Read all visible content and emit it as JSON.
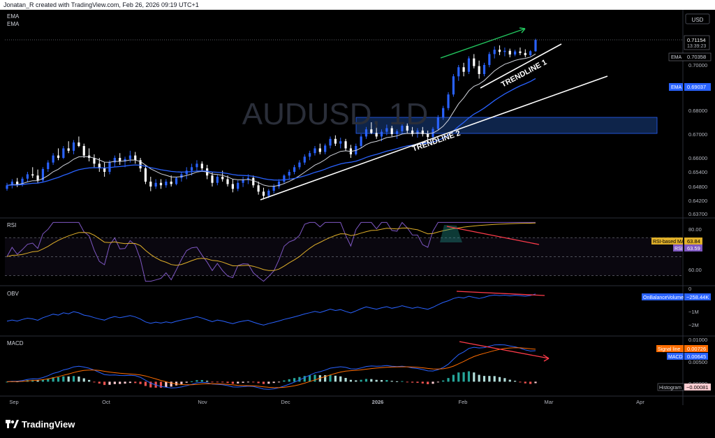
{
  "header": {
    "credit": "Jonatan_R created with TradingView.com, Feb 26, 2026 09:19 UTC+1"
  },
  "brand": {
    "name": "TradingView"
  },
  "panes": {
    "price": {
      "currency": "USD",
      "watermark": "AUDUSD, 1D",
      "indicator_labels": [
        "EMA",
        "EMA"
      ],
      "ticks": [
        "0.70000",
        "0.68000",
        "0.67000",
        "0.66000",
        "0.65400",
        "0.64800",
        "0.64200",
        "0.63700"
      ],
      "last_price": "0.71154",
      "countdown": "13:39:23",
      "ema_fast_label": "EMA",
      "ema_fast_value": "0.70358",
      "ema_slow_label": "EMA",
      "ema_slow_value": "0.69037",
      "annotations": [
        "TRENDLINE 1",
        "TRENDLINE 2"
      ]
    },
    "rsi": {
      "label": "RSI",
      "ticks": [
        "80.00",
        "60.00"
      ],
      "ma_label": "RSI-based MA",
      "ma_value": "63.84",
      "rsi_label": "RSI",
      "rsi_value": "63.59"
    },
    "obv": {
      "label": "OBV",
      "ticks": [
        "0",
        "−1M",
        "−2M"
      ],
      "tag_label": "OnBalanceVolume",
      "tag_value": "−258.44K"
    },
    "macd": {
      "label": "MACD",
      "ticks": [
        "0.01000",
        "0.00500",
        "0.00000"
      ],
      "signal_label": "Signal line",
      "signal_value": "0.00726",
      "macd_label": "MACD",
      "macd_value": "0.00645",
      "hist_label": "Histogram",
      "hist_value": "−0.00081"
    }
  },
  "time_axis": [
    "Sep",
    "Oct",
    "Nov",
    "Dec",
    "2026",
    "Feb",
    "Mar",
    "Apr"
  ],
  "colors": {
    "up": "#2962ff",
    "down": "#ffffff",
    "ema_fast": "#d1d4dc",
    "ema_slow": "#2962ff",
    "rsi": "#7e57c2",
    "rsi_ma": "#e0b02a",
    "obv": "#2962ff",
    "macd": "#2962ff",
    "signal": "#ff6d00",
    "divergence": "#ff3b4a",
    "up_arrow": "#22c55e",
    "zone": "#1e4fa3",
    "hist_pos": "#26a69a",
    "hist_neg": "#ef5350"
  },
  "chart_data": {
    "type": "candlestick",
    "symbol": "AUDUSD",
    "timeframe": "1D",
    "x_range": [
      "2025-09-01",
      "2026-04-10"
    ],
    "ylim": [
      0.635,
      0.714
    ],
    "last_close": 0.71154,
    "ohlc_approx": [
      [
        0.647,
        0.6495,
        0.6462,
        0.6485
      ],
      [
        0.6485,
        0.651,
        0.6472,
        0.65
      ],
      [
        0.65,
        0.6515,
        0.6478,
        0.6487
      ],
      [
        0.6487,
        0.652,
        0.648,
        0.6512
      ],
      [
        0.6512,
        0.654,
        0.65,
        0.653
      ],
      [
        0.653,
        0.656,
        0.6515,
        0.6525
      ],
      [
        0.6525,
        0.655,
        0.6495,
        0.6505
      ],
      [
        0.6505,
        0.656,
        0.65,
        0.6552
      ],
      [
        0.6552,
        0.659,
        0.654,
        0.658
      ],
      [
        0.658,
        0.662,
        0.657,
        0.661
      ],
      [
        0.661,
        0.664,
        0.659,
        0.66
      ],
      [
        0.66,
        0.665,
        0.6595,
        0.664
      ],
      [
        0.664,
        0.667,
        0.662,
        0.663
      ],
      [
        0.663,
        0.6675,
        0.6615,
        0.6665
      ],
      [
        0.6665,
        0.669,
        0.6645,
        0.665
      ],
      [
        0.665,
        0.666,
        0.66,
        0.661
      ],
      [
        0.661,
        0.664,
        0.6585,
        0.66
      ],
      [
        0.66,
        0.6615,
        0.656,
        0.6575
      ],
      [
        0.6575,
        0.66,
        0.654,
        0.6555
      ],
      [
        0.6555,
        0.658,
        0.652,
        0.654
      ],
      [
        0.654,
        0.659,
        0.653,
        0.658
      ],
      [
        0.658,
        0.661,
        0.656,
        0.66
      ],
      [
        0.66,
        0.662,
        0.657,
        0.6585
      ],
      [
        0.6585,
        0.6605,
        0.656,
        0.6595
      ],
      [
        0.6595,
        0.663,
        0.658,
        0.661
      ],
      [
        0.661,
        0.6625,
        0.6575,
        0.659
      ],
      [
        0.659,
        0.66,
        0.654,
        0.6555
      ],
      [
        0.6555,
        0.657,
        0.649,
        0.65
      ],
      [
        0.65,
        0.652,
        0.646,
        0.648
      ],
      [
        0.648,
        0.651,
        0.647,
        0.6495
      ],
      [
        0.6495,
        0.651,
        0.647,
        0.6485
      ],
      [
        0.6485,
        0.651,
        0.6475,
        0.65
      ],
      [
        0.65,
        0.6525,
        0.648,
        0.649
      ],
      [
        0.649,
        0.652,
        0.6485,
        0.6515
      ],
      [
        0.6515,
        0.654,
        0.65,
        0.653
      ],
      [
        0.653,
        0.656,
        0.651,
        0.6545
      ],
      [
        0.6545,
        0.6575,
        0.6525,
        0.656
      ],
      [
        0.656,
        0.659,
        0.6545,
        0.6575
      ],
      [
        0.6575,
        0.6585,
        0.654,
        0.6555
      ],
      [
        0.6555,
        0.657,
        0.651,
        0.6525
      ],
      [
        0.6525,
        0.654,
        0.648,
        0.6495
      ],
      [
        0.6495,
        0.653,
        0.6485,
        0.652
      ],
      [
        0.652,
        0.6545,
        0.65,
        0.651
      ],
      [
        0.651,
        0.6525,
        0.648,
        0.649
      ],
      [
        0.649,
        0.651,
        0.6455,
        0.647
      ],
      [
        0.647,
        0.6505,
        0.646,
        0.6495
      ],
      [
        0.6495,
        0.652,
        0.6478,
        0.6508
      ],
      [
        0.6508,
        0.653,
        0.649,
        0.6515
      ],
      [
        0.6515,
        0.6525,
        0.6475,
        0.6485
      ],
      [
        0.6485,
        0.65,
        0.6445,
        0.6458
      ],
      [
        0.6458,
        0.6475,
        0.6425,
        0.644
      ],
      [
        0.644,
        0.647,
        0.643,
        0.6462
      ],
      [
        0.6462,
        0.649,
        0.645,
        0.648
      ],
      [
        0.648,
        0.651,
        0.647,
        0.65
      ],
      [
        0.65,
        0.653,
        0.649,
        0.6525
      ],
      [
        0.6525,
        0.655,
        0.651,
        0.654
      ],
      [
        0.654,
        0.657,
        0.653,
        0.656
      ],
      [
        0.656,
        0.659,
        0.655,
        0.658
      ],
      [
        0.658,
        0.6615,
        0.657,
        0.6605
      ],
      [
        0.6605,
        0.663,
        0.659,
        0.662
      ],
      [
        0.662,
        0.665,
        0.661,
        0.664
      ],
      [
        0.664,
        0.666,
        0.6615,
        0.6625
      ],
      [
        0.6625,
        0.666,
        0.6615,
        0.6652
      ],
      [
        0.6652,
        0.669,
        0.664,
        0.668
      ],
      [
        0.668,
        0.6695,
        0.665,
        0.666
      ],
      [
        0.666,
        0.6685,
        0.664,
        0.667
      ],
      [
        0.667,
        0.668,
        0.663,
        0.664
      ],
      [
        0.664,
        0.6655,
        0.66,
        0.6615
      ],
      [
        0.6615,
        0.666,
        0.661,
        0.665
      ],
      [
        0.665,
        0.67,
        0.664,
        0.669
      ],
      [
        0.669,
        0.673,
        0.668,
        0.672
      ],
      [
        0.672,
        0.675,
        0.67,
        0.6705
      ],
      [
        0.6705,
        0.673,
        0.668,
        0.669
      ],
      [
        0.669,
        0.672,
        0.667,
        0.671
      ],
      [
        0.671,
        0.674,
        0.6695,
        0.6725
      ],
      [
        0.6725,
        0.6735,
        0.669,
        0.67
      ],
      [
        0.67,
        0.672,
        0.668,
        0.6712
      ],
      [
        0.6712,
        0.6745,
        0.67,
        0.6735
      ],
      [
        0.6735,
        0.6745,
        0.6705,
        0.6715
      ],
      [
        0.6715,
        0.673,
        0.669,
        0.67
      ],
      [
        0.67,
        0.6725,
        0.6685,
        0.6715
      ],
      [
        0.6715,
        0.673,
        0.669,
        0.67
      ],
      [
        0.67,
        0.6715,
        0.6675,
        0.6688
      ],
      [
        0.6688,
        0.673,
        0.668,
        0.6722
      ],
      [
        0.6722,
        0.678,
        0.6715,
        0.677
      ],
      [
        0.677,
        0.682,
        0.676,
        0.681
      ],
      [
        0.681,
        0.688,
        0.68,
        0.687
      ],
      [
        0.687,
        0.696,
        0.686,
        0.695
      ],
      [
        0.695,
        0.7,
        0.693,
        0.699
      ],
      [
        0.699,
        0.701,
        0.695,
        0.697
      ],
      [
        0.697,
        0.704,
        0.696,
        0.703
      ],
      [
        0.703,
        0.705,
        0.6985,
        0.6995
      ],
      [
        0.6995,
        0.702,
        0.694,
        0.696
      ],
      [
        0.696,
        0.701,
        0.695,
        0.7
      ],
      [
        0.7,
        0.706,
        0.699,
        0.705
      ],
      [
        0.705,
        0.7085,
        0.703,
        0.707
      ],
      [
        0.707,
        0.709,
        0.7045,
        0.706
      ],
      [
        0.706,
        0.708,
        0.704,
        0.7065
      ],
      [
        0.7065,
        0.7075,
        0.7035,
        0.7048
      ],
      [
        0.7048,
        0.707,
        0.704,
        0.7062
      ],
      [
        0.7062,
        0.708,
        0.7045,
        0.7055
      ],
      [
        0.7055,
        0.7072,
        0.7035,
        0.7045
      ],
      [
        0.7045,
        0.7068,
        0.704,
        0.7063
      ],
      [
        0.7063,
        0.712,
        0.706,
        0.7115
      ]
    ],
    "ema_fast_last": 0.70358,
    "ema_slow_last": 0.69037,
    "zone": {
      "from": "2025-12-20",
      "to": "2026-04-10",
      "low": 0.6715,
      "high": 0.676
    },
    "trendlines": [
      {
        "name": "TRENDLINE 1",
        "from": [
          "2026-01-21",
          0.696
        ],
        "to": [
          "2026-02-27",
          0.709
        ]
      },
      {
        "name": "TRENDLINE 2",
        "from": [
          "2025-11-24",
          0.6415
        ],
        "to": [
          "2026-03-12",
          0.699
        ]
      }
    ],
    "rsi": {
      "last": 63.59,
      "ma_last": 63.84,
      "levels": [
        70,
        50,
        30
      ],
      "ylim": [
        20,
        90
      ]
    },
    "obv": {
      "last": -258440,
      "ylim": [
        -2500000,
        150000
      ]
    },
    "macd": {
      "macd_last": 0.00645,
      "signal_last": 0.00726,
      "hist_last": -0.00081,
      "ylim": [
        -0.0035,
        0.0115
      ]
    }
  }
}
